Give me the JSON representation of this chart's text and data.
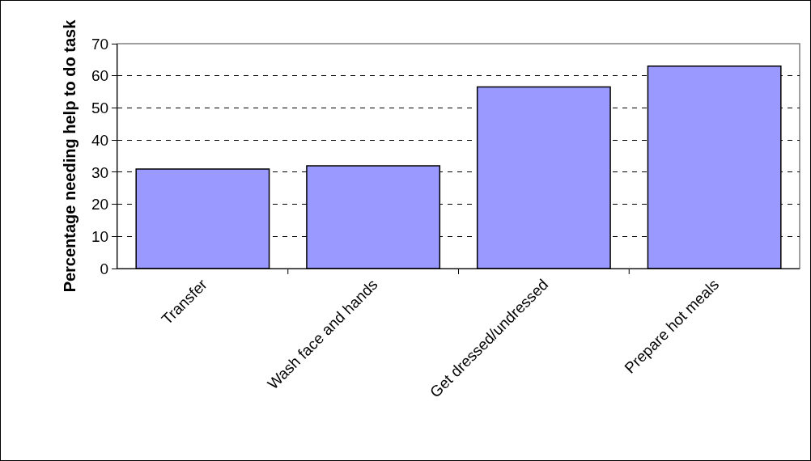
{
  "chart_data": {
    "type": "bar",
    "ylabel": "Percentage needing help to do task",
    "categories": [
      "Transfer",
      "Wash face and hands",
      "Get dressed/undressed",
      "Prepare hot meals"
    ],
    "values": [
      31,
      32,
      56.5,
      63
    ],
    "color": "#9999ff",
    "ylim": [
      0,
      70
    ],
    "yticks": [
      0,
      10,
      20,
      30,
      40,
      50,
      60,
      70
    ],
    "grid": "y",
    "legend": false
  }
}
